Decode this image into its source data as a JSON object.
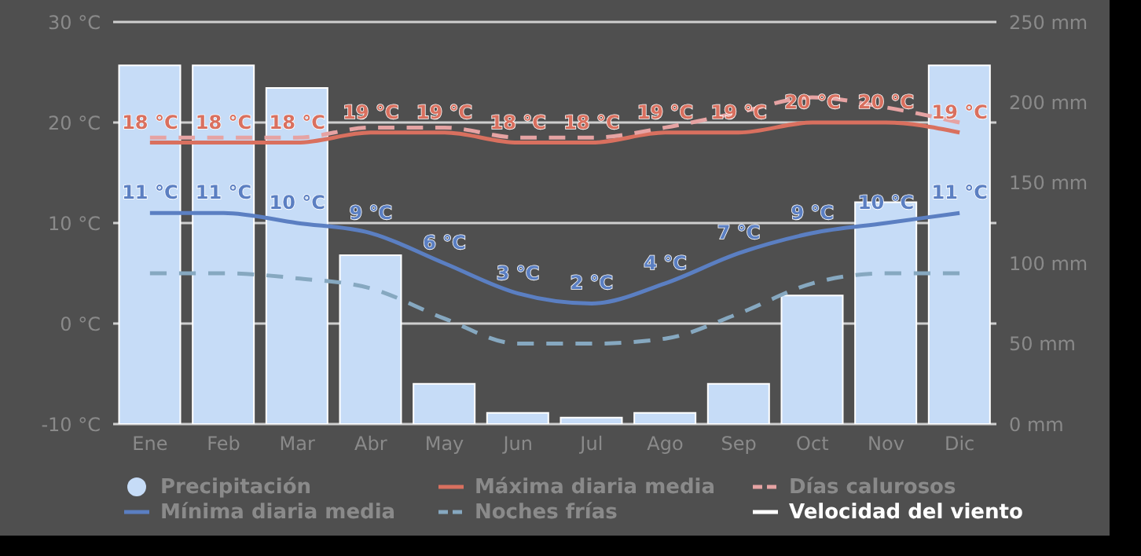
{
  "chart_data": {
    "type": "bar",
    "categories": [
      "Ene",
      "Feb",
      "Mar",
      "Abr",
      "May",
      "Jun",
      "Jul",
      "Ago",
      "Sep",
      "Oct",
      "Nov",
      "Dic"
    ],
    "series": [
      {
        "name": "Precipitación",
        "axis": "y2",
        "color": "#c6dcf7",
        "values": [
          223,
          223,
          209,
          105,
          25,
          7,
          4,
          7,
          25,
          80,
          138,
          223
        ]
      },
      {
        "name": "Máxima diaria media",
        "type": "line",
        "color": "#d9705f",
        "line_style": "solid",
        "values": [
          18,
          18,
          18,
          19,
          19,
          18,
          18,
          19,
          19,
          20,
          20,
          19
        ],
        "value_labels": [
          "18 °C",
          "18 °C",
          "18 °C",
          "19 °C",
          "19 °C",
          "18 °C",
          "18 °C",
          "19 °C",
          "19 °C",
          "20 °C",
          "20 °C",
          "19 °C"
        ]
      },
      {
        "name": "Días calurosos",
        "type": "line",
        "color": "#e6a3a3",
        "line_style": "dashed",
        "values": [
          18.5,
          18.5,
          18.5,
          19.5,
          19.5,
          18.5,
          18.5,
          19.5,
          21,
          22.5,
          21.5,
          20
        ]
      },
      {
        "name": "Mínima diaria media",
        "type": "line",
        "color": "#5b7fc2",
        "line_style": "solid",
        "values": [
          11,
          11,
          10,
          9,
          6,
          3,
          2,
          4,
          7,
          9,
          10,
          11
        ],
        "value_labels": [
          "11 °C",
          "11 °C",
          "10 °C",
          "9 °C",
          "6 °C",
          "3 °C",
          "2 °C",
          "4 °C",
          "7 °C",
          "9 °C",
          "10 °C",
          "11 °C"
        ]
      },
      {
        "name": "Noches frías",
        "type": "line",
        "color": "#86a8c0",
        "line_style": "dashed",
        "values": [
          5,
          5,
          4.5,
          3.5,
          0.5,
          -2,
          -2,
          -1.5,
          1,
          4,
          5,
          5
        ]
      },
      {
        "name": "Velocidad del viento",
        "type": "line",
        "color": "#ffffff",
        "line_style": "solid",
        "values": [
          null,
          null,
          null,
          null,
          null,
          null,
          null,
          null,
          null,
          null,
          null,
          null
        ]
      }
    ],
    "ylim": [
      -10,
      30
    ],
    "yticks": [
      {
        "value": -10,
        "label": "-10 °C"
      },
      {
        "value": 0,
        "label": "0 °C"
      },
      {
        "value": 10,
        "label": "10 °C"
      },
      {
        "value": 20,
        "label": "20 °C"
      },
      {
        "value": 30,
        "label": "30 °C"
      }
    ],
    "y2lim": [
      0,
      250
    ],
    "y2ticks": [
      {
        "value": 0,
        "label": "0 mm"
      },
      {
        "value": 50,
        "label": "50 mm"
      },
      {
        "value": 100,
        "label": "100 mm"
      },
      {
        "value": 150,
        "label": "150 mm"
      },
      {
        "value": 200,
        "label": "200 mm"
      },
      {
        "value": 250,
        "label": "250 mm"
      }
    ],
    "grid": "y",
    "legend": "bottom",
    "marker": "none"
  }
}
